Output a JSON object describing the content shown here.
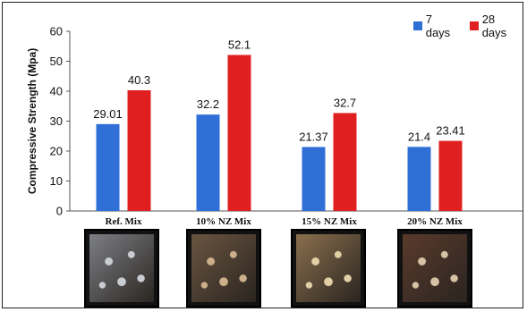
{
  "chart_data": {
    "type": "bar",
    "categories": [
      "Ref. Mix",
      "10% NZ Mix",
      "15% NZ Mix",
      "20% NZ Mix"
    ],
    "series": [
      {
        "name": "7 days",
        "values": [
          29.01,
          32.2,
          21.37,
          21.4
        ],
        "labels": [
          "29.01",
          "32.2",
          "21.37",
          "21.4"
        ],
        "color": "#2f6fd6"
      },
      {
        "name": "28 days",
        "values": [
          40.3,
          52.1,
          32.7,
          23.41
        ],
        "labels": [
          "40.3",
          "52.1",
          "32.7",
          "23.41"
        ],
        "color": "#e02020"
      }
    ],
    "ylabel": "Compressive Strength (Mpa)",
    "ylim": [
      0,
      60
    ],
    "yticks": [
      "0",
      "10",
      "20",
      "30",
      "40",
      "50",
      "60"
    ],
    "legend_position": "top-right",
    "grid": false
  },
  "photos": [
    {
      "caption_ref": "Ref. Mix",
      "tone": "#7d7f85",
      "accent": "#c9ccd1"
    },
    {
      "caption_ref": "10% NZ Mix",
      "tone": "#6a5440",
      "accent": "#cdb08a"
    },
    {
      "caption_ref": "15% NZ Mix",
      "tone": "#8a6f4e",
      "accent": "#e2cfa6"
    },
    {
      "caption_ref": "20% NZ Mix",
      "tone": "#5a3a2c",
      "accent": "#d8c2a6"
    }
  ]
}
